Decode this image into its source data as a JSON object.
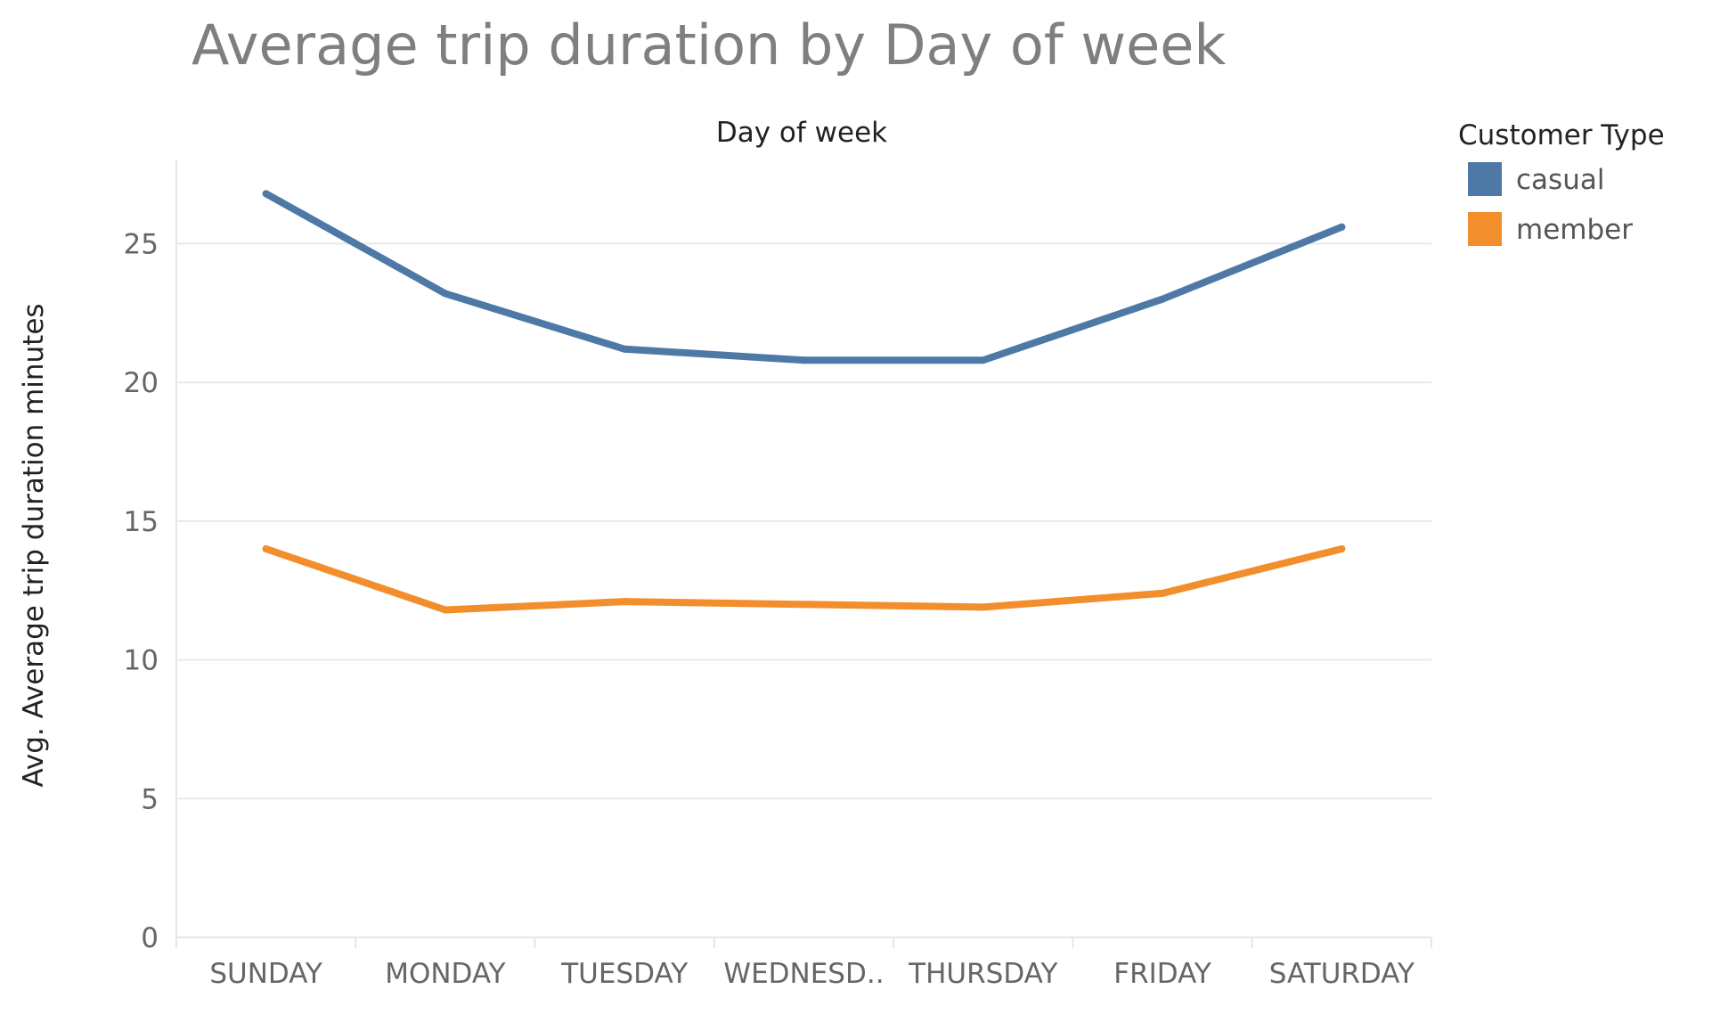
{
  "chart_data": {
    "type": "line",
    "title": "Average trip duration by Day of week",
    "header": "Day of week",
    "ylabel": "Avg. Average trip duration minutes",
    "categories": [
      "SUNDAY",
      "MONDAY",
      "TUESDAY",
      "WEDNESD..",
      "THURSDAY",
      "FRIDAY",
      "SATURDAY"
    ],
    "ylim": [
      0,
      28
    ],
    "yticks": [
      0,
      5,
      10,
      15,
      20,
      25
    ],
    "series": [
      {
        "name": "casual",
        "color": "#4e79a7",
        "values": [
          26.8,
          23.2,
          21.2,
          20.8,
          20.8,
          23.0,
          25.6
        ]
      },
      {
        "name": "member",
        "color": "#f28e2b",
        "values": [
          14.0,
          11.8,
          12.1,
          12.0,
          11.9,
          12.4,
          14.0
        ]
      }
    ],
    "legend": {
      "title": "Customer Type",
      "placement": "top-right"
    },
    "grid": true
  }
}
